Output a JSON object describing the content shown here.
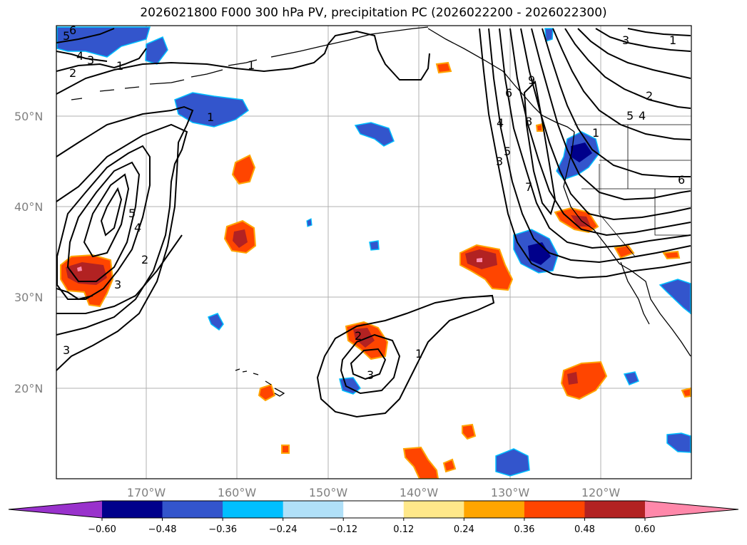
{
  "title": "2026021800 F000 300 hPa PV, precipitation PC (2026022200 - 2026022300)",
  "map": {
    "lat_labels": [
      "50°N",
      "40°N",
      "30°N",
      "20°N"
    ],
    "lon_labels": [
      "170°W",
      "160°W",
      "150°W",
      "140°W",
      "130°W",
      "120°W"
    ],
    "grid": true,
    "land_color": "#ffffff",
    "coastline_color": "#000000"
  },
  "colorbar": {
    "extend": "both",
    "tick_labels": [
      "−0.60",
      "−0.48",
      "−0.36",
      "−0.24",
      "−0.12",
      "0.12",
      "0.24",
      "0.36",
      "0.48",
      "0.60"
    ],
    "under_color": "#9932cc",
    "over_color": "#ff88aa",
    "colors": [
      "#00008b",
      "#3355cc",
      "#00bfff",
      "#b0e0f8",
      "#ffffff",
      "#ffe88a",
      "#ffa500",
      "#ff4500",
      "#b22222"
    ]
  },
  "contours": {
    "color": "#000000",
    "labels": [
      "5",
      "6",
      "3",
      "4",
      "2",
      "1",
      "1",
      "1",
      "5",
      "4",
      "2",
      "3",
      "3",
      "2",
      "3",
      "1",
      "9",
      "6",
      "8",
      "4",
      "5",
      "3",
      "7",
      "1",
      "3",
      "2",
      "5",
      "4",
      "6",
      "1"
    ]
  }
}
